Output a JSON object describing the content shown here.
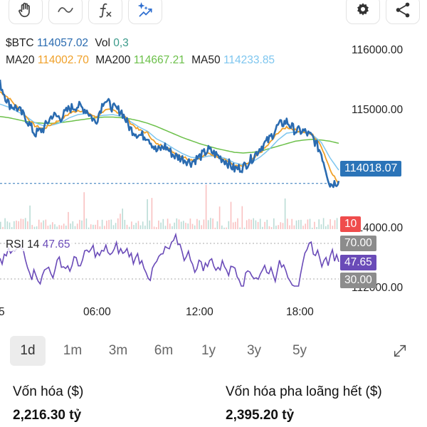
{
  "toolbar": {
    "left_icons": [
      "hand-icon",
      "curve-icon",
      "function-icon",
      "sparkle-icon"
    ],
    "right_icons": [
      "gear-icon",
      "share-icon"
    ]
  },
  "legend": {
    "symbol": "$BTC",
    "price": "114057.02",
    "vol_label": "Vol",
    "vol_value": "0,3",
    "ma20_label": "MA20",
    "ma20_value": "114002.70",
    "ma200_label": "MA200",
    "ma200_value": "114667.21",
    "ma50_label": "MA50",
    "ma50_value": "114233.85"
  },
  "price_axis": [
    "116000.00",
    "115000.00",
    "114000.00",
    "112000.00"
  ],
  "current_price_badge": "114018.07",
  "volume_badge": "10",
  "rsi": {
    "label": "RSI 14",
    "value": "47.65",
    "upper": "70.00",
    "lower": "30.00"
  },
  "x_axis": {
    "partial": "5",
    "ticks": [
      "06:00",
      "12:00",
      "18:00"
    ]
  },
  "periods": [
    "1d",
    "1m",
    "3m",
    "6m",
    "1y",
    "3y",
    "5y"
  ],
  "active_period": "1d",
  "stats": {
    "market_cap_label": "Vốn hóa ($)",
    "market_cap_value": "2,216.30 tỷ",
    "fdv_label": "Vốn hóa pha loãng hết ($)",
    "fdv_value": "2,395.20 tỷ"
  },
  "colors": {
    "price_line": "#2a6bb0",
    "ma20": "#f0a028",
    "ma200": "#6cc04a",
    "ma50": "#7ec6ef",
    "rsi": "#6a4bb8",
    "badge_price": "#2b74b8",
    "badge_volume": "#ef4c4c",
    "badge_rsi": "#6a4bb8",
    "badge_level": "#8c8c8c"
  },
  "chart_data": {
    "type": "line",
    "x": [
      "00:00",
      "00:30",
      "01:00",
      "01:30",
      "02:00",
      "02:30",
      "03:00",
      "03:30",
      "04:00",
      "04:30",
      "05:00",
      "05:30",
      "06:00",
      "06:30",
      "07:00",
      "07:30",
      "08:00",
      "08:30",
      "09:00",
      "09:30",
      "10:00",
      "10:30",
      "11:00",
      "11:30",
      "12:00",
      "12:30",
      "13:00",
      "13:30",
      "14:00",
      "14:30",
      "15:00",
      "15:30",
      "16:00",
      "16:30",
      "17:00",
      "17:30",
      "18:00",
      "18:30",
      "19:00",
      "19:30"
    ],
    "series": [
      {
        "name": "$BTC",
        "values": [
          115630,
          115300,
          115230,
          115070,
          114820,
          114900,
          115120,
          115080,
          115230,
          115270,
          115200,
          115000,
          115380,
          115240,
          115180,
          114900,
          114800,
          114780,
          114540,
          114620,
          114470,
          114420,
          114360,
          114450,
          114560,
          114470,
          114380,
          114250,
          114280,
          114420,
          114600,
          114730,
          114950,
          115020,
          114870,
          114860,
          114760,
          114500,
          114000,
          114057
        ]
      },
      {
        "name": "MA20",
        "values": [
          115500,
          115400,
          115250,
          115100,
          114950,
          114900,
          114980,
          115050,
          115150,
          115200,
          115180,
          115080,
          115200,
          115200,
          115150,
          115000,
          114880,
          114830,
          114650,
          114620,
          114520,
          114450,
          114400,
          114430,
          114500,
          114460,
          114400,
          114300,
          114290,
          114390,
          114520,
          114660,
          114840,
          114930,
          114880,
          114850,
          114800,
          114620,
          114250,
          114002
        ]
      },
      {
        "name": "MA200",
        "values": [
          115100,
          115080,
          115050,
          115020,
          115000,
          114990,
          114990,
          115000,
          115020,
          115040,
          115060,
          115080,
          115090,
          115090,
          115080,
          115060,
          115030,
          114990,
          114940,
          114880,
          114820,
          114760,
          114710,
          114660,
          114620,
          114580,
          114550,
          114520,
          114510,
          114520,
          114540,
          114580,
          114620,
          114660,
          114700,
          114720,
          114730,
          114720,
          114700,
          114667
        ]
      },
      {
        "name": "MA50",
        "values": [
          115300,
          115250,
          115180,
          115100,
          115000,
          114950,
          114960,
          115000,
          115080,
          115130,
          115150,
          115100,
          115120,
          115130,
          115100,
          115020,
          114930,
          114860,
          114740,
          114670,
          114580,
          114500,
          114440,
          114430,
          114460,
          114460,
          114420,
          114350,
          114320,
          114360,
          114450,
          114570,
          114720,
          114830,
          114850,
          114840,
          114800,
          114680,
          114430,
          114233
        ]
      }
    ],
    "ylim": [
      113900,
      116200
    ]
  }
}
